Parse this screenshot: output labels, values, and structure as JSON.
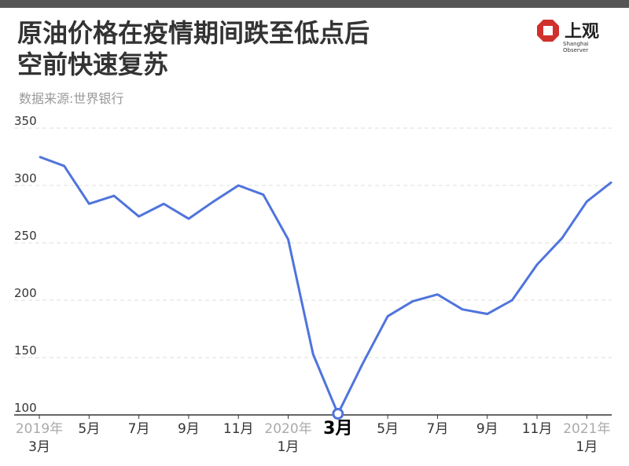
{
  "header": {
    "logo": "上观",
    "logo_sub": "Shanghai Observer"
  },
  "chart_data": {
    "type": "line",
    "title": [
      "原油价格在疫情期间跌至低点后",
      "空前快速复苏"
    ],
    "subtitle": "数据来源:世界银行",
    "years": [
      "2019年",
      null,
      null,
      null,
      null,
      null,
      null,
      null,
      null,
      null,
      "2020年",
      null,
      null,
      null,
      null,
      null,
      null,
      null,
      null,
      null,
      null,
      null,
      "2021年",
      null
    ],
    "categories": [
      "3月",
      null,
      "5月",
      null,
      "7月",
      null,
      "9月",
      null,
      "11月",
      null,
      "1月",
      null,
      "3月",
      null,
      "5月",
      null,
      "7月",
      null,
      "9月",
      null,
      "11月",
      null,
      "1月",
      null
    ],
    "series": [
      {
        "color": "#4f74dc",
        "values": [
          325,
          317,
          284,
          291,
          273,
          284,
          271,
          286,
          300,
          292,
          253,
          153,
          101,
          145,
          186,
          199,
          205,
          192,
          188,
          200,
          231,
          254,
          286,
          303
        ]
      }
    ],
    "highlight_index": 12,
    "ylim": [
      100,
      350
    ],
    "yticks": [
      100,
      150,
      200,
      250,
      300,
      350
    ],
    "grid": true
  }
}
